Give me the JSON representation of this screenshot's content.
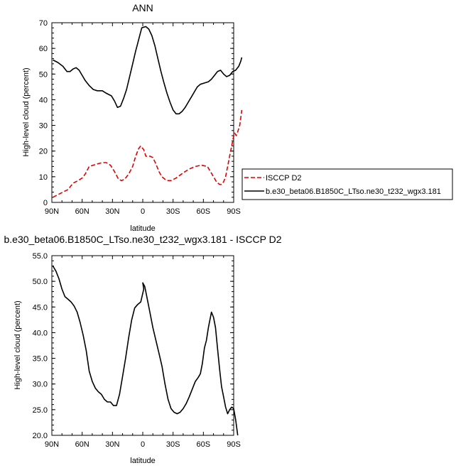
{
  "chart_data": [
    {
      "type": "line",
      "title": "ANN",
      "xlabel": "latitude",
      "ylabel": "High-level cloud (percent)",
      "xlim": [
        90,
        -90
      ],
      "ylim": [
        0,
        70
      ],
      "x_ticks": [
        90,
        60,
        30,
        0,
        -30,
        -60,
        -90
      ],
      "x_tick_labels": [
        "90N",
        "60N",
        "30N",
        "0",
        "30S",
        "60S",
        "90S"
      ],
      "y_ticks": [
        0,
        10,
        20,
        30,
        40,
        50,
        60,
        70
      ],
      "y_tick_labels": [
        "0",
        "10",
        "20",
        "30",
        "40",
        "50",
        "60",
        "70"
      ],
      "grid": false,
      "legend_position": "right",
      "series": [
        {
          "name": "ISCCP D2",
          "color": "#e00000",
          "dash": "dashed",
          "points": [
            [
              89,
              2
            ],
            [
              84,
              3
            ],
            [
              79,
              4
            ],
            [
              74,
              5
            ],
            [
              69,
              7.5
            ],
            [
              64,
              8.5
            ],
            [
              60,
              9.5
            ],
            [
              57,
              11
            ],
            [
              53,
              14
            ],
            [
              49,
              14.5
            ],
            [
              45,
              15
            ],
            [
              40,
              15.5
            ],
            [
              36,
              15.5
            ],
            [
              32,
              14.5
            ],
            [
              28,
              12
            ],
            [
              24,
              9
            ],
            [
              21,
              8.5
            ],
            [
              18,
              9
            ],
            [
              14,
              11
            ],
            [
              10,
              14
            ],
            [
              7,
              18
            ],
            [
              4,
              21
            ],
            [
              2,
              22
            ],
            [
              -1,
              20.5
            ],
            [
              -3,
              18
            ],
            [
              -7,
              18
            ],
            [
              -10,
              17.5
            ],
            [
              -13,
              15
            ],
            [
              -16,
              12
            ],
            [
              -19,
              10
            ],
            [
              -22,
              9
            ],
            [
              -25,
              8.5
            ],
            [
              -28,
              8.5
            ],
            [
              -33,
              9.5
            ],
            [
              -40,
              11.5
            ],
            [
              -46,
              13
            ],
            [
              -52,
              14
            ],
            [
              -58,
              14.5
            ],
            [
              -64,
              14
            ],
            [
              -67,
              12
            ],
            [
              -70,
              10
            ],
            [
              -73,
              8
            ],
            [
              -76,
              7
            ],
            [
              -78,
              7
            ],
            [
              -80,
              8
            ],
            [
              -82,
              10
            ],
            [
              -84,
              14
            ],
            [
              -86,
              18
            ],
            [
              -88,
              22
            ],
            [
              -89.5,
              25
            ],
            [
              -91,
              27
            ],
            [
              -92.5,
              26
            ],
            [
              -94,
              27.5
            ],
            [
              -96,
              30
            ],
            [
              -97,
              33
            ],
            [
              -98,
              36
            ]
          ]
        },
        {
          "name": "b.e30_beta06.B1850C_LTso.ne30_t232_wgx3.181",
          "color": "#000000",
          "dash": "solid",
          "points": [
            [
              89,
              55.5
            ],
            [
              84,
              54.5
            ],
            [
              79,
              53
            ],
            [
              75,
              51
            ],
            [
              72,
              51
            ],
            [
              69,
              52
            ],
            [
              66,
              52.5
            ],
            [
              63,
              51.5
            ],
            [
              60,
              49.5
            ],
            [
              57,
              47.5
            ],
            [
              53,
              45.5
            ],
            [
              49,
              44
            ],
            [
              45,
              43.5
            ],
            [
              40,
              43.5
            ],
            [
              36,
              42.5
            ],
            [
              31,
              41.5
            ],
            [
              28,
              39.5
            ],
            [
              25,
              37
            ],
            [
              22,
              37.5
            ],
            [
              19,
              40.5
            ],
            [
              16,
              44
            ],
            [
              13,
              49
            ],
            [
              10,
              54
            ],
            [
              7,
              59
            ],
            [
              5,
              62
            ],
            [
              3,
              65
            ],
            [
              1,
              68
            ],
            [
              -3,
              68.5
            ],
            [
              -6,
              67.5
            ],
            [
              -9,
              65
            ],
            [
              -12,
              61
            ],
            [
              -15,
              56
            ],
            [
              -18,
              51
            ],
            [
              -21,
              46.5
            ],
            [
              -24,
              42.5
            ],
            [
              -27,
              39
            ],
            [
              -30,
              36
            ],
            [
              -33,
              34.5
            ],
            [
              -36,
              34.5
            ],
            [
              -39,
              35.5
            ],
            [
              -42,
              37
            ],
            [
              -45,
              39
            ],
            [
              -48,
              41
            ],
            [
              -51,
              43
            ],
            [
              -54,
              45
            ],
            [
              -57,
              46
            ],
            [
              -61,
              46.5
            ],
            [
              -65,
              47
            ],
            [
              -68,
              48
            ],
            [
              -71,
              49.5
            ],
            [
              -74,
              51
            ],
            [
              -77,
              51.5
            ],
            [
              -80,
              50
            ],
            [
              -83,
              49
            ],
            [
              -86,
              49.5
            ],
            [
              -89,
              51
            ],
            [
              -92,
              51.5
            ],
            [
              -95,
              53
            ],
            [
              -97,
              55
            ],
            [
              -98,
              56.5
            ]
          ]
        }
      ]
    },
    {
      "type": "line",
      "title": "b.e30_beta06.B1850C_LTso.ne30_t232_wgx3.181 - ISCCP D2",
      "xlabel": "latitude",
      "ylabel": "High-level cloud (percent)",
      "xlim": [
        90,
        -90
      ],
      "ylim": [
        20,
        55
      ],
      "x_ticks": [
        90,
        60,
        30,
        0,
        -30,
        -60,
        -90
      ],
      "x_tick_labels": [
        "90N",
        "60N",
        "30N",
        "0",
        "30S",
        "60S",
        "90S"
      ],
      "y_ticks": [
        20,
        25,
        30,
        35,
        40,
        45,
        50,
        55
      ],
      "y_tick_labels": [
        "20.0",
        "25.0",
        "30.0",
        "35.0",
        "40.0",
        "45.0",
        "50.0",
        "55.0"
      ],
      "grid": false,
      "series": [
        {
          "color": "#000000",
          "dash": "solid",
          "points": [
            [
              89,
              53
            ],
            [
              86,
              52
            ],
            [
              83,
              50.5
            ],
            [
              80,
              48.5
            ],
            [
              77,
              47
            ],
            [
              74,
              46.5
            ],
            [
              71,
              46
            ],
            [
              68,
              45.2
            ],
            [
              65,
              44
            ],
            [
              62,
              42
            ],
            [
              59,
              39.5
            ],
            [
              56,
              36.5
            ],
            [
              53,
              32.5
            ],
            [
              50,
              30.5
            ],
            [
              47,
              29.2
            ],
            [
              44,
              28.5
            ],
            [
              41,
              28
            ],
            [
              38,
              27
            ],
            [
              35,
              26.5
            ],
            [
              32,
              26.5
            ],
            [
              29,
              25.8
            ],
            [
              26,
              25.8
            ],
            [
              23,
              28
            ],
            [
              20,
              31.5
            ],
            [
              17,
              35
            ],
            [
              14,
              39
            ],
            [
              11,
              42.5
            ],
            [
              8,
              44.8
            ],
            [
              5,
              45.5
            ],
            [
              2,
              46
            ],
            [
              -1,
              48.5
            ],
            [
              0,
              49.7
            ],
            [
              -2,
              49
            ],
            [
              -4,
              47
            ],
            [
              -7,
              44
            ],
            [
              -10,
              41
            ],
            [
              -13,
              38.5
            ],
            [
              -16,
              36
            ],
            [
              -19,
              33.5
            ],
            [
              -22,
              30
            ],
            [
              -25,
              27
            ],
            [
              -28,
              25.2
            ],
            [
              -31,
              24.5
            ],
            [
              -34,
              24.2
            ],
            [
              -37,
              24.5
            ],
            [
              -40,
              25.2
            ],
            [
              -43,
              26.2
            ],
            [
              -46,
              27.5
            ],
            [
              -49,
              29
            ],
            [
              -52,
              30.5
            ],
            [
              -55,
              31.3
            ],
            [
              -57,
              32
            ],
            [
              -59,
              34
            ],
            [
              -61,
              37
            ],
            [
              -63,
              38.5
            ],
            [
              -65,
              41
            ],
            [
              -67,
              43
            ],
            [
              -68,
              44
            ],
            [
              -70,
              43
            ],
            [
              -72,
              41
            ],
            [
              -74,
              37
            ],
            [
              -76,
              33
            ],
            [
              -78,
              29.5
            ],
            [
              -80,
              27.5
            ],
            [
              -82,
              25.5
            ],
            [
              -84,
              24.2
            ],
            [
              -86,
              25
            ],
            [
              -88,
              25.5
            ],
            [
              -90,
              25.2
            ],
            [
              -92,
              23
            ],
            [
              -94,
              20
            ]
          ]
        }
      ]
    }
  ]
}
